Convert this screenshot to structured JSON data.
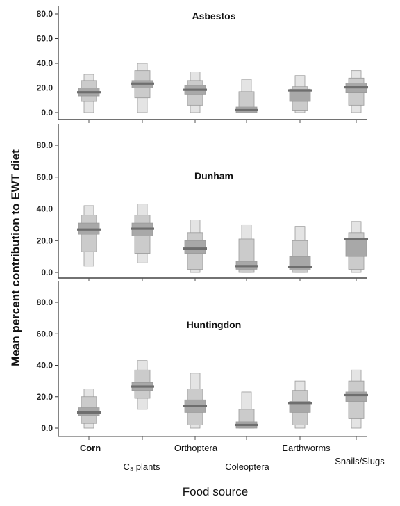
{
  "chart_data": {
    "type": "box",
    "ylabel": "Mean percent contribution to EWT diet",
    "xlabel": "Food source",
    "categories": [
      "Corn",
      "C₃ plants",
      "Orthoptera",
      "Coleoptera",
      "Earthworms",
      "Snails/Slugs"
    ],
    "y_ticks": [
      "80.0",
      "60.0",
      "40.0",
      "20.0",
      "0.0"
    ],
    "ylim": [
      0,
      85
    ],
    "panels": [
      {
        "title": "Asbestos",
        "boxes": [
          {
            "category": "Corn",
            "mean": 16.5,
            "r50": [
              13.5,
              20
            ],
            "r75": [
              9,
              26
            ],
            "r95": [
              0,
              31
            ]
          },
          {
            "category": "C₃ plants",
            "mean": 23.5,
            "r50": [
              20,
              26
            ],
            "r75": [
              12,
              34
            ],
            "r95": [
              0,
              40
            ]
          },
          {
            "category": "Orthoptera",
            "mean": 18.5,
            "r50": [
              15,
              22
            ],
            "r75": [
              6,
              26
            ],
            "r95": [
              0,
              33
            ]
          },
          {
            "category": "Coleoptera",
            "mean": 2,
            "r50": [
              0,
              4.5
            ],
            "r75": [
              0,
              17
            ],
            "r95": [
              0,
              27
            ]
          },
          {
            "category": "Earthworms",
            "mean": 18,
            "r50": [
              9,
              19
            ],
            "r75": [
              2,
              21
            ],
            "r95": [
              0,
              30
            ]
          },
          {
            "category": "Snails/Slugs",
            "mean": 20.5,
            "r50": [
              16,
              24
            ],
            "r75": [
              6,
              28
            ],
            "r95": [
              0,
              34
            ]
          }
        ]
      },
      {
        "title": "Dunham",
        "boxes": [
          {
            "category": "Corn",
            "mean": 27,
            "r50": [
              24,
              31
            ],
            "r75": [
              13,
              36
            ],
            "r95": [
              4,
              42
            ]
          },
          {
            "category": "C₃ plants",
            "mean": 27.5,
            "r50": [
              23,
              31
            ],
            "r75": [
              12,
              36
            ],
            "r95": [
              6,
              43
            ]
          },
          {
            "category": "Orthoptera",
            "mean": 15,
            "r50": [
              12,
              20
            ],
            "r75": [
              2,
              25
            ],
            "r95": [
              0,
              33
            ]
          },
          {
            "category": "Coleoptera",
            "mean": 4,
            "r50": [
              2,
              7
            ],
            "r75": [
              0,
              21
            ],
            "r95": [
              0,
              30
            ]
          },
          {
            "category": "Earthworms",
            "mean": 3.5,
            "r50": [
              1.5,
              10
            ],
            "r75": [
              0,
              20
            ],
            "r95": [
              0,
              29
            ]
          },
          {
            "category": "Snails/Slugs",
            "mean": 21,
            "r50": [
              10,
              21
            ],
            "r75": [
              2,
              25
            ],
            "r95": [
              0,
              32
            ]
          }
        ]
      },
      {
        "title": "Huntingdon",
        "boxes": [
          {
            "category": "Corn",
            "mean": 10,
            "r50": [
              8,
              13
            ],
            "r75": [
              3,
              20
            ],
            "r95": [
              0,
              25
            ]
          },
          {
            "category": "C₃ plants",
            "mean": 26.5,
            "r50": [
              24,
              29
            ],
            "r75": [
              19,
              37
            ],
            "r95": [
              12,
              43
            ]
          },
          {
            "category": "Orthoptera",
            "mean": 14,
            "r50": [
              10,
              18
            ],
            "r75": [
              2,
              25
            ],
            "r95": [
              0,
              35
            ]
          },
          {
            "category": "Coleoptera",
            "mean": 2,
            "r50": [
              0,
              4
            ],
            "r75": [
              0,
              12
            ],
            "r95": [
              0,
              23
            ]
          },
          {
            "category": "Earthworms",
            "mean": 16,
            "r50": [
              10,
              17
            ],
            "r75": [
              2,
              24
            ],
            "r95": [
              0,
              30
            ]
          },
          {
            "category": "Snails/Slugs",
            "mean": 21,
            "r50": [
              17,
              23
            ],
            "r75": [
              6,
              30
            ],
            "r95": [
              0,
              37
            ]
          }
        ]
      }
    ]
  },
  "colors": {
    "range95": "#e4e4e4",
    "range75": "#cbcbcb",
    "range50": "#a8a8a8",
    "mean": "#6e6e6e",
    "outline": "#9a9a9a"
  }
}
